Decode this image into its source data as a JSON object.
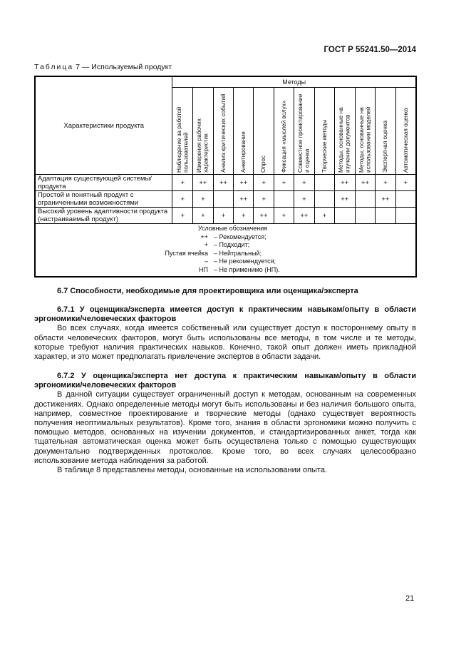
{
  "header": {
    "doc_id": "ГОСТ Р 55241.50—2014"
  },
  "table": {
    "caption_prefix": "Таблица",
    "caption_rest": "7 — Используемый продукт",
    "char_header": "Характеристики продукта",
    "methods_header": "Методы",
    "methods": [
      "Наблюдение за работой пользователей",
      "Измерения рабочих характеристик",
      "Анализ критических событий",
      "Анкетирование",
      "Опрос",
      "Фиксация «мыслей вслух»",
      "Совместное проектирование и оценка",
      "Творческие методы",
      "Методы, основанные на изучении документов",
      "Методы, основанные на использовании моделей",
      "Экспертная оценка",
      "Автоматическая оценка"
    ],
    "rows": [
      {
        "label": "Адаптация существующей системы/продукта",
        "values": [
          "+",
          "++",
          "++",
          "++",
          "+",
          "+",
          "+",
          "",
          "++",
          "++",
          "+",
          "+"
        ]
      },
      {
        "label": "Простой и понятный продукт с ограниченными возможностями",
        "values": [
          "+",
          "+",
          "",
          "++",
          "+",
          "",
          "+",
          "",
          "++",
          "",
          "++",
          ""
        ]
      },
      {
        "label": "Высокий уровень адаптивности продукта (настраиваемый продукт)",
        "values": [
          "+",
          "+",
          "+",
          "+",
          "++",
          "+",
          "++",
          "+",
          "",
          "",
          "",
          ""
        ]
      }
    ],
    "legend": {
      "title": "Условные обозначения",
      "items": [
        {
          "key": "++",
          "desc": "– Рекомендуется;"
        },
        {
          "key": "+",
          "desc": "– Подходит;"
        },
        {
          "key": "Пустая ячейка",
          "desc": "– Нейтральный;"
        },
        {
          "key": "–",
          "desc": "– Не рекомендуется;"
        },
        {
          "key": "НП",
          "desc": "– Не применимо (НП)."
        }
      ]
    }
  },
  "sections": {
    "s67": "6.7 Способности, необходимые для проектировщика или оценщика/эксперта",
    "s671": "6.7.1 У оценщика/эксперта имеется доступ к практическим навыкам/опыту в области эргономики/человеческих факторов",
    "p671": "Во всех случаях, когда имеется собственный или существует доступ к постороннему опыту в области человеческих факторов, могут быть использованы все методы, в том числе и те методы, которые требуют наличия практических навыков. Конечно, такой опыт должен иметь прикладной характер, и это может предполагать привлечение экспертов в области задачи.",
    "s672": "6.7.2 У оценщика/эксперта нет доступа к практическим навыкам/опыту в области эргономики/человеческих факторов",
    "p672": "В данной ситуации существует ограниченный доступ к методам, основанным на современных достижениях. Однако определенные методы могут быть использованы и без наличия большого опыта, например, совместное проектирование и творческие методы (однако существует вероятность получения неоптимальных результатов). Кроме того, знания в области эргономики можно получить с помощью методов, основанных на изучении документов, и стандартизированных анкет, тогда как тщательная автоматическая оценка может быть осуществлена только с помощью существующих документально подтвержденных протоколов. Кроме того, во всех случаях целесообразно использование метода наблюдения за работой.",
    "p672b": "В таблице 8 представлены методы, основанные на использовании опыта."
  },
  "footer": {
    "page_number": "21"
  }
}
